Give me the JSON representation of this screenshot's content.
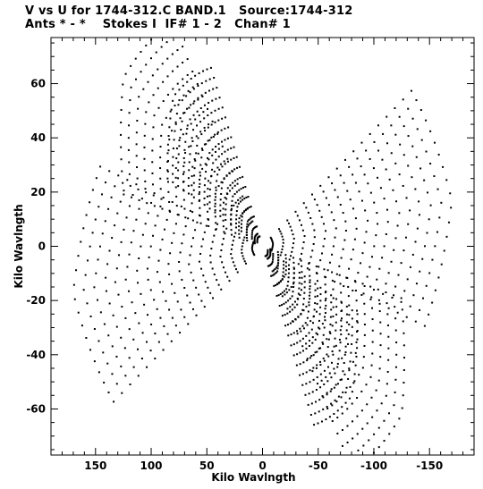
{
  "chart_data": {
    "type": "scatter",
    "title_line1": "V vs U for 1744-312.C BAND.1   Source:1744-312",
    "title_line2": "Ants * - *    Stokes I  IF# 1 - 2   Chan# 1",
    "xlabel": "Kilo Wavlngth",
    "ylabel": "Kilo Wavlngth",
    "xlim": [
      190,
      -190
    ],
    "ylim": [
      -77,
      77
    ],
    "x_ticks": [
      150,
      100,
      50,
      0,
      -50,
      -100,
      -150
    ],
    "x_tick_labels": [
      "150",
      "100",
      "50",
      "0",
      "-50",
      "-100",
      "-150"
    ],
    "y_ticks": [
      60,
      40,
      20,
      0,
      -20,
      -40,
      -60
    ],
    "y_tick_labels": [
      "60",
      "40",
      "20",
      "0",
      "-20",
      "-40",
      "-60"
    ],
    "series": [
      {
        "marker": "dot",
        "color": "#000000",
        "pattern": "six-armed star uv-coverage (symmetric tracks)",
        "arm_tips": [
          {
            "u": 125,
            "v": 73
          },
          {
            "u": -125,
            "v": -73
          },
          {
            "u": 80,
            "v": 65
          },
          {
            "u": -80,
            "v": -65
          },
          {
            "u": 170,
            "v": -20
          },
          {
            "u": -170,
            "v": 20
          }
        ]
      }
    ]
  }
}
